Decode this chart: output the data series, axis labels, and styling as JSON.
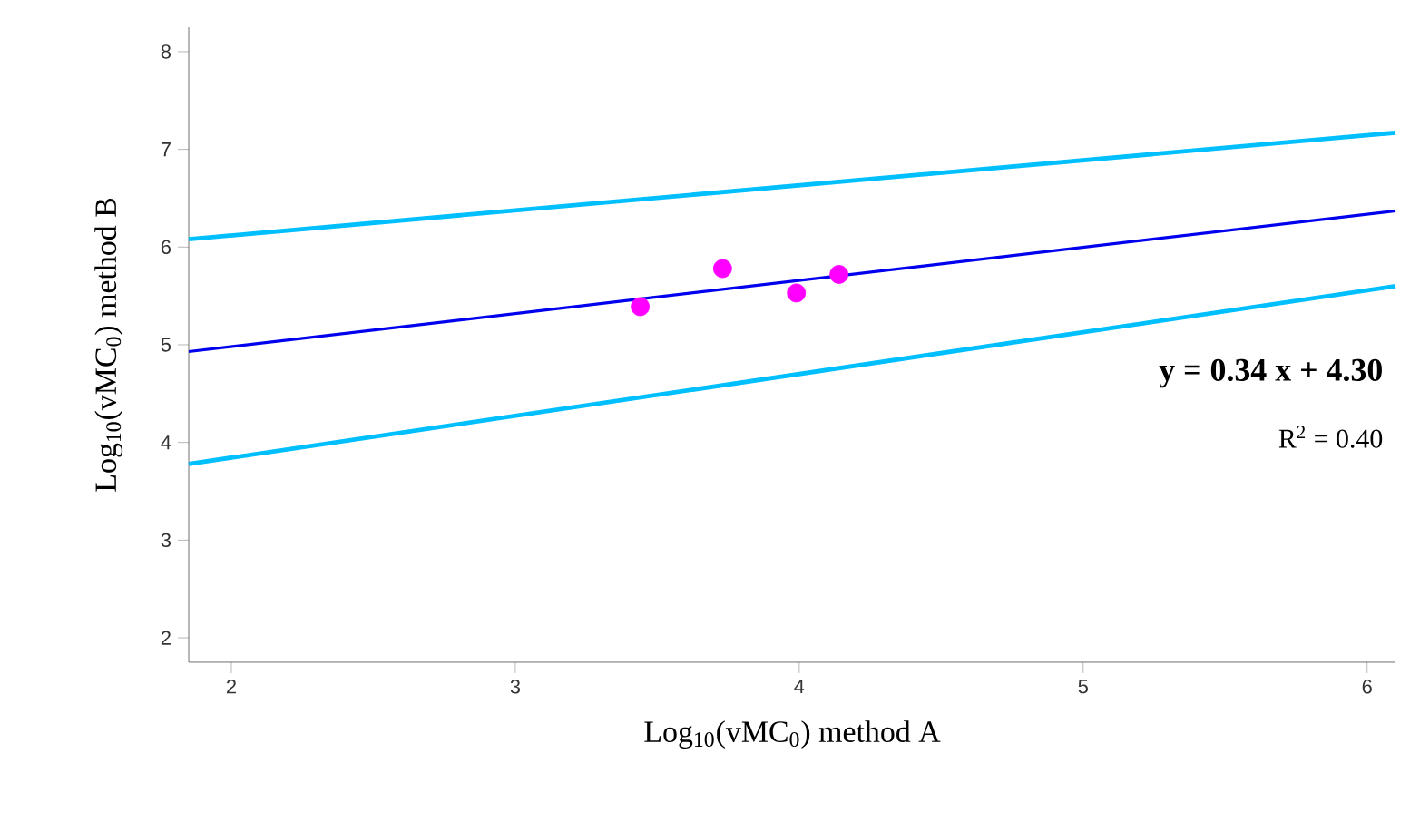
{
  "chart_data": {
    "type": "scatter",
    "xlabel": "Log$_{10}$(vMC$_{0}$) method A",
    "ylabel": "Log$_{10}$(vMC$_{0}$) method B",
    "xlim": [
      1.85,
      6.1
    ],
    "ylim": [
      1.75,
      8.25
    ],
    "xticks": [
      2,
      3,
      4,
      5,
      6
    ],
    "yticks": [
      2,
      3,
      4,
      5,
      6,
      7,
      8
    ],
    "grid": false,
    "series": [
      {
        "marker": "circle",
        "color": "#ff00ff",
        "x": [
          3.44,
          3.73,
          3.99,
          4.14
        ],
        "values": [
          5.39,
          5.78,
          5.53,
          5.72
        ]
      },
      {
        "type": "line",
        "color": "#0000ee",
        "x": [
          1.85,
          6.1
        ],
        "values": [
          4.93,
          6.37
        ],
        "marker": "none"
      },
      {
        "type": "line",
        "color": "#00bfff",
        "x": [
          1.85,
          6.1
        ],
        "values": [
          6.08,
          7.17
        ],
        "marker": "none"
      },
      {
        "type": "line",
        "color": "#00bfff",
        "x": [
          1.85,
          6.1
        ],
        "values": [
          3.78,
          5.6
        ],
        "marker": "none"
      }
    ],
    "annotations": [
      "y = 0.34 x + 4.30",
      "R$^{2}$ = 0.40"
    ]
  }
}
